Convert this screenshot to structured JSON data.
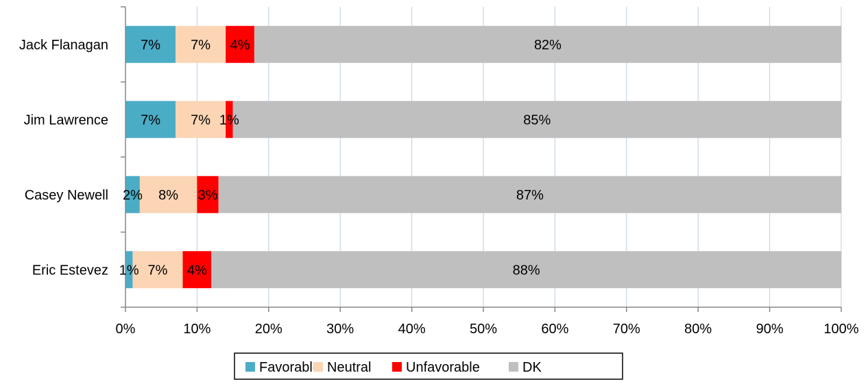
{
  "chart_data": {
    "type": "bar",
    "orientation": "horizontal",
    "stacked": "percent",
    "categories": [
      "Jack Flanagan",
      "Jim Lawrence",
      "Casey Newell",
      "Eric Estevez"
    ],
    "series": [
      {
        "name": "Favorable",
        "color": "#4bacc6",
        "values": [
          7,
          7,
          2,
          1
        ]
      },
      {
        "name": "Neutral",
        "color": "#fcd5b5",
        "values": [
          7,
          7,
          8,
          7
        ]
      },
      {
        "name": "Unfavorable",
        "color": "#ff0000",
        "values": [
          4,
          1,
          3,
          4
        ]
      },
      {
        "name": "DK",
        "color": "#bfbfbf",
        "values": [
          82,
          85,
          87,
          88
        ]
      }
    ],
    "data_labels": [
      [
        "7%",
        "7%",
        "4%",
        "82%"
      ],
      [
        "7%",
        "7%",
        "1%",
        "85%"
      ],
      [
        "2%",
        "8%",
        "3%",
        "87%"
      ],
      [
        "1%",
        "7%",
        "4%",
        "88%"
      ]
    ],
    "xlim": [
      0,
      100
    ],
    "x_ticks": [
      0,
      10,
      20,
      30,
      40,
      50,
      60,
      70,
      80,
      90,
      100
    ],
    "x_tick_labels": [
      "0%",
      "10%",
      "20%",
      "30%",
      "40%",
      "50%",
      "60%",
      "70%",
      "80%",
      "90%",
      "100%"
    ],
    "grid": "vertical",
    "legend_position": "bottom",
    "title": "",
    "xlabel": "",
    "ylabel": ""
  }
}
